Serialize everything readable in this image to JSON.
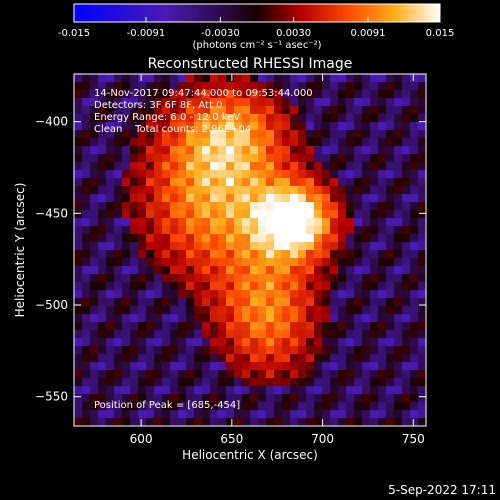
{
  "chart_data": {
    "type": "heatmap",
    "title": "Reconstructed RHESSI Image",
    "xlabel": "Heliocentric X (arcsec)",
    "ylabel": "Heliocentric Y (arcsec)",
    "xlim": [
      563,
      757
    ],
    "ylim": [
      -566,
      -374
    ],
    "xticks": [
      600,
      650,
      700,
      750
    ],
    "yticks": [
      -400,
      -450,
      -500,
      -550
    ],
    "colorbar": {
      "min": -0.015,
      "max": 0.015,
      "ticks": [
        {
          "value": -0.015,
          "label": "-0.015"
        },
        {
          "value": -0.0091,
          "label": "-0.0091"
        },
        {
          "value": -0.003,
          "label": "-0.0030"
        },
        {
          "value": 0.003,
          "label": "0.0030"
        },
        {
          "value": 0.0091,
          "label": "0.0091"
        },
        {
          "value": 0.015,
          "label": "0.015"
        }
      ],
      "unit_label": "(photons cm⁻² s⁻¹ asec⁻²)"
    },
    "annotations": [
      "14-Nov-2017 09:47:44.000 to 09:53:44.000",
      "Detectors: 3F 6F 8F, Att 0",
      "Energy Range: 6.0 - 12.0 keV",
      "Clean    Total counts: 2.96E+04"
    ],
    "peak_label": "Position of Peak = [685,-454]",
    "peak": {
      "x": 685,
      "y": -454
    },
    "timestamp": "5-Sep-2022 17:11"
  }
}
